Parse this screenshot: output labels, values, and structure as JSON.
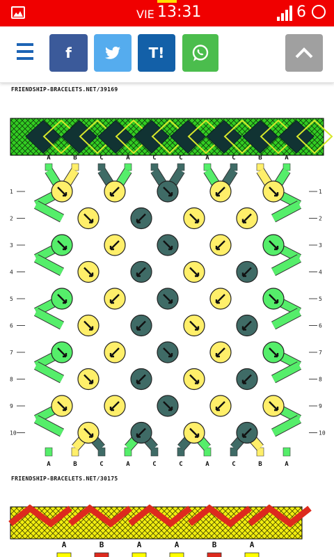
{
  "status": {
    "day": "VIE",
    "time": "13:31",
    "network": "6",
    "colors": {
      "bar": "#f00000",
      "text": "#ffffff"
    }
  },
  "share_bar": {
    "buttons": [
      {
        "name": "facebook",
        "label": "f",
        "color": "#3b5a9a"
      },
      {
        "name": "twitter",
        "icon": "twitter-bird-icon",
        "color": "#55acee"
      },
      {
        "name": "tuenti",
        "label": "T!",
        "color": "#1360a8"
      },
      {
        "name": "whatsapp",
        "icon": "whatsapp-icon",
        "color": "#4bbd4d"
      }
    ],
    "scroll_top": {
      "icon": "chevron-up-icon",
      "color": "#a0a0a0"
    },
    "menu_icon": "hamburger-menu-icon"
  },
  "patterns": [
    {
      "caption": "FRIENDSHIP-BRACELETS.NET/39169",
      "strings_top": [
        "A",
        "B",
        "C",
        "A",
        "C",
        "C",
        "A",
        "C",
        "B",
        "A"
      ],
      "strings_bottom": [
        "A",
        "B",
        "C",
        "A",
        "C",
        "C",
        "A",
        "C",
        "B",
        "A"
      ],
      "row_numbers": [
        "1",
        "2",
        "3",
        "4",
        "5",
        "6",
        "7",
        "8",
        "9",
        "10"
      ],
      "colors": {
        "A": "#55ee6a",
        "B": "#ffef6a",
        "C": "#3f6b66"
      }
    },
    {
      "caption": "FRIENDSHIP-BRACELETS.NET/30175",
      "strings_top": [
        "A",
        "B",
        "A",
        "A",
        "B",
        "A"
      ],
      "colors": {
        "A": "#ffff00",
        "B": "#dd2a1e"
      }
    }
  ]
}
